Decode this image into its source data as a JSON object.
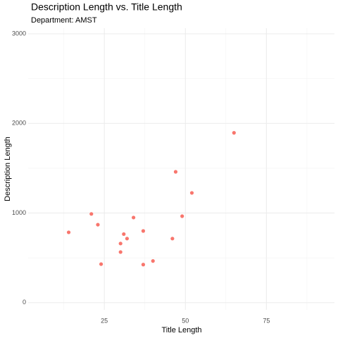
{
  "chart_data": {
    "type": "scatter",
    "title": "Description Length vs. Title Length",
    "subtitle": "Department: AMST",
    "x_label": "Title Length",
    "y_label": "Description Length",
    "color": "#F8766D",
    "grid": true,
    "xlim": [
      1.5,
      96
    ],
    "ylim": [
      -80,
      3063
    ],
    "xticks": [
      25,
      50,
      75
    ],
    "yticks": [
      0,
      1000,
      2000,
      3000
    ],
    "x": [
      14,
      21,
      23,
      24,
      30,
      30,
      31,
      32,
      34,
      37,
      37,
      40,
      46,
      47,
      49,
      52,
      65
    ],
    "values": [
      785,
      990,
      870,
      430,
      660,
      565,
      765,
      715,
      950,
      800,
      425,
      465,
      715,
      1460,
      965,
      1225,
      1895
    ]
  }
}
